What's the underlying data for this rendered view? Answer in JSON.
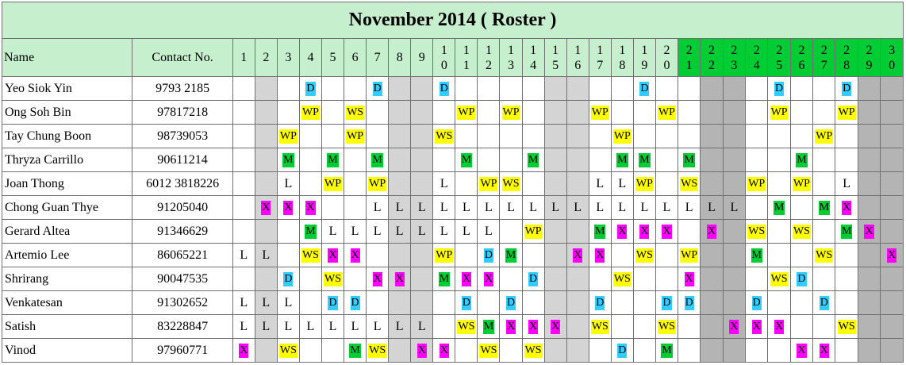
{
  "title": "November 2014 ( Roster )",
  "headers": {
    "name": "Name",
    "contact": "Contact No."
  },
  "days": [
    "1",
    "2",
    "3",
    "4",
    "5",
    "6",
    "7",
    "8",
    "9",
    "10",
    "11",
    "12",
    "13",
    "14",
    "15",
    "16",
    "17",
    "18",
    "19",
    "20",
    "21",
    "22",
    "23",
    "24",
    "25",
    "26",
    "27",
    "28",
    "29",
    "30"
  ],
  "colors": {
    "D": "#33ccff",
    "WP": "#ffff00",
    "WS": "#ffff00",
    "M": "#00cc33",
    "X": "#ff00ff",
    "header_bg": "#c6efce",
    "header_green": "#00cc33",
    "weekend_light": "#d4d4d4",
    "weekend_dark": "#b4b4b4"
  },
  "rows": [
    {
      "name": "Yeo Siok Yin",
      "contact": "9793 2185",
      "cells": [
        "",
        "",
        "",
        "D",
        "",
        "",
        "D",
        "",
        "",
        "D",
        "",
        "",
        "",
        "",
        "",
        "",
        "",
        "",
        "D",
        "",
        "",
        "",
        "",
        "",
        "D",
        "",
        "",
        "D",
        "",
        ""
      ]
    },
    {
      "name": "Ong Soh Bin",
      "contact": "97817218",
      "cells": [
        "",
        "",
        "",
        "WP",
        "",
        "WS",
        "",
        "",
        "",
        "",
        "WP",
        "",
        "WP",
        "",
        "",
        "",
        "WP",
        "",
        "",
        "WP",
        "",
        "",
        "",
        "",
        "WP",
        "",
        "",
        "WP",
        "",
        ""
      ]
    },
    {
      "name": "Tay Chung Boon",
      "contact": "98739053",
      "cells": [
        "",
        "",
        "WP",
        "",
        "",
        "WP",
        "",
        "",
        "",
        "WS",
        "",
        "",
        "",
        "",
        "",
        "",
        "",
        "WP",
        "",
        "",
        "",
        "",
        "",
        "",
        "",
        "",
        "WP",
        "",
        "",
        ""
      ]
    },
    {
      "name": "Thryza Carrillo",
      "contact": "90611214",
      "cells": [
        "",
        "",
        "M",
        "",
        "M",
        "",
        "M",
        "",
        "",
        "",
        "M",
        "",
        "",
        "M",
        "",
        "",
        "",
        "M",
        "M",
        "",
        "M",
        "",
        "",
        "",
        "",
        "M",
        "",
        "",
        "",
        ""
      ]
    },
    {
      "name": "Joan Thong",
      "contact": "6012 3818226",
      "cells": [
        "",
        "",
        "L",
        "",
        "WP",
        "",
        "WP",
        "",
        "",
        "L",
        "",
        "WP",
        "WS",
        "",
        "",
        "",
        "L",
        "L",
        "WP",
        "",
        "WS",
        "",
        "",
        "WP",
        "",
        "WP",
        "",
        "L",
        "",
        ""
      ]
    },
    {
      "name": "Chong Guan Thye",
      "contact": "91205040",
      "cells": [
        "",
        "X",
        "X",
        "X",
        "",
        "",
        "L",
        "L",
        "L",
        "L",
        "L",
        "L",
        "L",
        "L",
        "L",
        "L",
        "L",
        "L",
        "L",
        "L",
        "L",
        "L",
        "L",
        "",
        "M",
        "",
        "M",
        "X",
        "",
        ""
      ]
    },
    {
      "name": "Gerard Altea",
      "contact": "91346629",
      "cells": [
        "",
        "",
        "",
        "M",
        "L",
        "L",
        "L",
        "L",
        "L",
        "L",
        "L",
        "L",
        "",
        "WP",
        "",
        "",
        "M",
        "X",
        "X",
        "X",
        "",
        "X",
        "",
        "WS",
        "",
        "WS",
        "",
        "M",
        "X",
        ""
      ]
    },
    {
      "name": "Artemio Lee",
      "contact": "86065221",
      "cells": [
        "L",
        "L",
        "",
        "WS",
        "X",
        "X",
        "",
        "",
        "",
        "WP",
        "",
        "D",
        "M",
        "",
        "",
        "X",
        "X",
        "",
        "WS",
        "",
        "WP",
        "",
        "",
        "M",
        "",
        "",
        "WS",
        "",
        "",
        "X"
      ]
    },
    {
      "name": "Shrirang",
      "contact": "90047535",
      "cells": [
        "",
        "",
        "D",
        "",
        "WS",
        "",
        "X",
        "X",
        "",
        "M",
        "X",
        "X",
        "",
        "D",
        "",
        "",
        "",
        "WS",
        "",
        "",
        "X",
        "",
        "",
        "",
        "WS",
        "D",
        "",
        "",
        "",
        ""
      ]
    },
    {
      "name": "Venkatesan",
      "contact": "91302652",
      "cells": [
        "L",
        "L",
        "L",
        "",
        "D",
        "D",
        "",
        "",
        "",
        "",
        "D",
        "",
        "D",
        "",
        "",
        "",
        "D",
        "",
        "",
        "D",
        "D",
        "",
        "",
        "D",
        "",
        "",
        "D",
        "",
        "",
        ""
      ]
    },
    {
      "name": "Satish",
      "contact": "83228847",
      "cells": [
        "L",
        "L",
        "L",
        "L",
        "L",
        "L",
        "L",
        "L",
        "L",
        "",
        "WS",
        "M",
        "X",
        "X",
        "X",
        "",
        "WS",
        "",
        "",
        "WS",
        "",
        "",
        "X",
        "X",
        "X",
        "",
        "",
        "WS",
        "",
        ""
      ]
    },
    {
      "name": "Vinod",
      "contact": "97960771",
      "cells": [
        "X",
        "",
        "WS",
        "",
        "",
        "M",
        "WS",
        "",
        "X",
        "X",
        "",
        "WS",
        "",
        "WS",
        "",
        "",
        "",
        "D",
        "",
        "M",
        "",
        "",
        "",
        "",
        "",
        "X",
        "X",
        "",
        "",
        ""
      ]
    }
  ]
}
